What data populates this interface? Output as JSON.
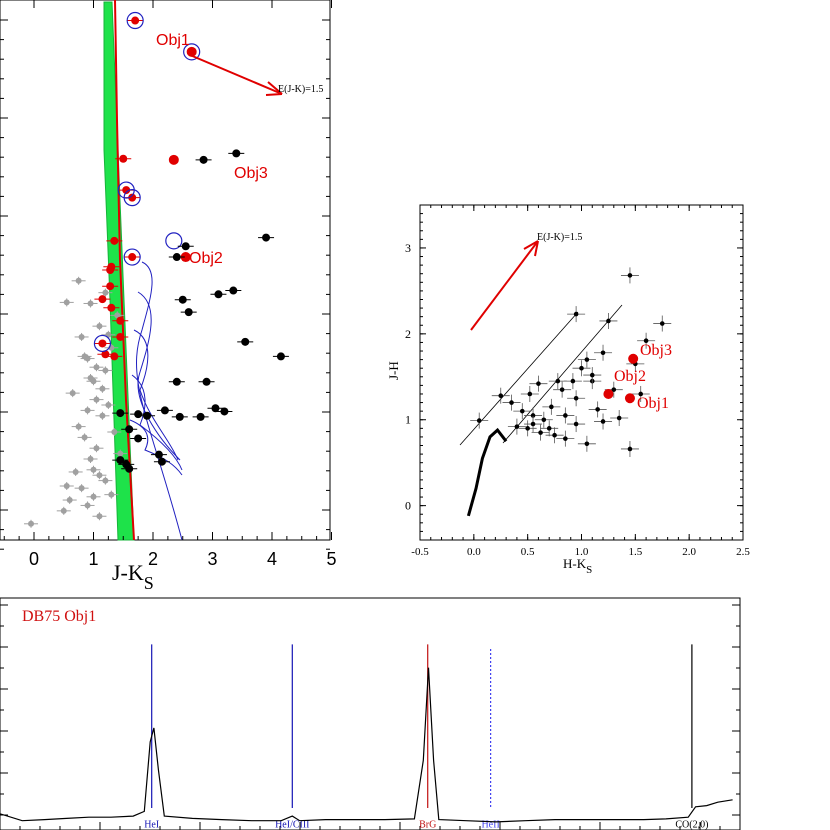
{
  "chart_data": [
    {
      "type": "scatter",
      "panel": "color-magnitude diagram (left)",
      "xlabel_main": "J-K",
      "xlabel_sub": "S",
      "xlim": [
        -0.6,
        5.0
      ],
      "xticks": [
        "0",
        "1",
        "2",
        "3",
        "4",
        "5"
      ],
      "annotations": {
        "obj1": "Obj1",
        "obj2": "Obj2",
        "obj3": "Obj3",
        "reddening": "E(J-K)=1.5"
      },
      "colors": {
        "field": "#a0a0a0",
        "cluster": "#e00000",
        "black": "#000000",
        "circle": "#2020c0",
        "band": "#00e040",
        "track": "#2020c0"
      },
      "series": [
        {
          "values": [
            [
              -0.05,
              0.97
            ],
            [
              0.5,
              0.946
            ],
            [
              0.6,
              0.926
            ],
            [
              0.8,
              0.904
            ],
            [
              0.9,
              0.936
            ],
            [
              1.0,
              0.92
            ],
            [
              1.1,
              0.956
            ],
            [
              1.2,
              0.89
            ],
            [
              0.7,
              0.874
            ],
            [
              0.95,
              0.85
            ],
            [
              1.05,
              0.83
            ],
            [
              0.85,
              0.81
            ],
            [
              0.75,
              0.79
            ],
            [
              1.15,
              0.77
            ],
            [
              1.25,
              0.75
            ],
            [
              0.65,
              0.728
            ],
            [
              1.0,
              0.706
            ],
            [
              1.2,
              0.686
            ],
            [
              0.9,
              0.664
            ],
            [
              1.3,
              0.644
            ],
            [
              0.8,
              0.624
            ],
            [
              1.1,
              0.604
            ],
            [
              1.4,
              0.584
            ],
            [
              0.95,
              0.562
            ],
            [
              1.2,
              0.542
            ],
            [
              0.75,
              0.52
            ],
            [
              0.95,
              0.7
            ],
            [
              1.05,
              0.74
            ],
            [
              0.85,
              0.66
            ],
            [
              1.25,
              0.62
            ],
            [
              0.55,
              0.56
            ],
            [
              1.05,
              0.68
            ],
            [
              1.15,
              0.72
            ],
            [
              0.9,
              0.76
            ],
            [
              1.35,
              0.8
            ],
            [
              1.45,
              0.84
            ],
            [
              1.1,
              0.88
            ],
            [
              0.55,
              0.9
            ],
            [
              1.3,
              0.916
            ],
            [
              1.0,
              0.87
            ]
          ]
        },
        {
          "values": [
            [
              1.7,
              0.038
            ],
            [
              1.5,
              0.294
            ],
            [
              1.55,
              0.352
            ],
            [
              1.65,
              0.366
            ],
            [
              1.35,
              0.446
            ],
            [
              1.65,
              0.476
            ],
            [
              1.3,
              0.494
            ],
            [
              1.15,
              0.554
            ],
            [
              1.3,
              0.57
            ],
            [
              1.45,
              0.594
            ],
            [
              1.15,
              0.636
            ],
            [
              1.2,
              0.656
            ],
            [
              1.35,
              0.66
            ],
            [
              1.45,
              0.624
            ],
            [
              1.28,
              0.53
            ],
            [
              1.28,
              0.5
            ]
          ]
        },
        {
          "values": [
            [
              2.65,
              0.096
            ],
            [
              2.35,
              0.296
            ],
            [
              2.55,
              0.476
            ]
          ]
        },
        {
          "values": [
            [
              2.85,
              0.296
            ],
            [
              3.4,
              0.284
            ],
            [
              3.9,
              0.44
            ],
            [
              2.55,
              0.456
            ],
            [
              2.4,
              0.476
            ],
            [
              2.5,
              0.555
            ],
            [
              3.1,
              0.545
            ],
            [
              3.35,
              0.538
            ],
            [
              2.6,
              0.578
            ],
            [
              3.55,
              0.633
            ],
            [
              4.15,
              0.66
            ],
            [
              2.4,
              0.707
            ],
            [
              2.9,
              0.707
            ],
            [
              1.75,
              0.767
            ],
            [
              2.2,
              0.76
            ],
            [
              2.45,
              0.772
            ],
            [
              2.8,
              0.772
            ],
            [
              3.2,
              0.762
            ],
            [
              1.45,
              0.765
            ],
            [
              1.9,
              0.77
            ],
            [
              3.05,
              0.756
            ],
            [
              1.6,
              0.795
            ],
            [
              1.75,
              0.812
            ],
            [
              2.1,
              0.842
            ],
            [
              1.45,
              0.852
            ],
            [
              2.15,
              0.855
            ],
            [
              1.55,
              0.86
            ],
            [
              1.6,
              0.868
            ]
          ]
        }
      ]
    },
    {
      "type": "scatter",
      "panel": "color-color diagram (right)",
      "xlabel_main": "H-K",
      "xlabel_sub": "S",
      "ylabel": "J-H",
      "xlim": [
        -0.5,
        2.5
      ],
      "ylim": [
        -0.4,
        3.5
      ],
      "xticks": [
        "-0.5",
        "0.0",
        "0.5",
        "1.0",
        "1.5",
        "2.0",
        "2.5"
      ],
      "yticks": [
        "0",
        "1",
        "2",
        "3"
      ],
      "annotations": {
        "obj1": "Obj1",
        "obj2": "Obj2",
        "obj3": "Obj3",
        "reddening": "E(J-K)=1.5"
      },
      "series": [
        {
          "values": [
            [
              1.45,
              2.68
            ],
            [
              0.95,
              2.23
            ],
            [
              1.25,
              2.15
            ],
            [
              1.75,
              2.12
            ],
            [
              1.6,
              1.92
            ],
            [
              1.5,
              1.65
            ],
            [
              1.2,
              1.78
            ],
            [
              1.05,
              1.7
            ],
            [
              0.6,
              1.42
            ],
            [
              0.78,
              1.45
            ],
            [
              0.92,
              1.45
            ],
            [
              1.1,
              1.45
            ],
            [
              1.0,
              1.6
            ],
            [
              0.82,
              1.35
            ],
            [
              0.52,
              1.3
            ],
            [
              0.25,
              1.28
            ],
            [
              0.35,
              1.2
            ],
            [
              0.45,
              1.1
            ],
            [
              0.55,
              1.05
            ],
            [
              0.65,
              1.0
            ],
            [
              0.72,
              1.15
            ],
            [
              0.85,
              1.05
            ],
            [
              0.95,
              0.95
            ],
            [
              1.15,
              1.12
            ],
            [
              1.2,
              0.98
            ],
            [
              1.35,
              1.02
            ],
            [
              0.4,
              0.92
            ],
            [
              0.5,
              0.9
            ],
            [
              0.62,
              0.85
            ],
            [
              0.75,
              0.82
            ],
            [
              0.85,
              0.78
            ],
            [
              1.05,
              0.72
            ],
            [
              1.45,
              0.66
            ],
            [
              0.05,
              0.99
            ],
            [
              0.55,
              0.95
            ],
            [
              0.7,
              0.9
            ],
            [
              1.3,
              1.35
            ],
            [
              1.1,
              1.52
            ],
            [
              1.55,
              1.3
            ],
            [
              0.95,
              1.25
            ]
          ]
        },
        {
          "values": [
            [
              1.45,
              1.25
            ],
            [
              1.25,
              1.3
            ],
            [
              1.48,
              1.71
            ]
          ]
        }
      ],
      "intrinsic_locus": [
        [
          -0.05,
          -0.12
        ],
        [
          0.02,
          0.2
        ],
        [
          0.08,
          0.55
        ],
        [
          0.15,
          0.8
        ],
        [
          0.22,
          0.88
        ],
        [
          0.3,
          0.75
        ]
      ]
    },
    {
      "type": "line",
      "panel": "near-infrared spectrum (bottom)",
      "title": "DB75 Obj1",
      "line_ids": [
        "HeI",
        "HeI/CIII",
        "BrG",
        "HeII",
        "CO(2,0)"
      ],
      "line_positions": [
        0.205,
        0.395,
        0.578,
        0.663,
        0.935
      ],
      "line_colors": [
        "#1515b4",
        "#1515b4",
        "#c01010",
        "#4040f0",
        "#000000"
      ],
      "spectrum": [
        [
          0.0,
          0.93
        ],
        [
          0.03,
          0.96
        ],
        [
          0.06,
          0.955
        ],
        [
          0.09,
          0.95
        ],
        [
          0.12,
          0.945
        ],
        [
          0.15,
          0.945
        ],
        [
          0.18,
          0.94
        ],
        [
          0.195,
          0.92
        ],
        [
          0.203,
          0.62
        ],
        [
          0.208,
          0.56
        ],
        [
          0.214,
          0.74
        ],
        [
          0.222,
          0.94
        ],
        [
          0.26,
          0.95
        ],
        [
          0.3,
          0.955
        ],
        [
          0.34,
          0.96
        ],
        [
          0.38,
          0.96
        ],
        [
          0.395,
          0.94
        ],
        [
          0.405,
          0.96
        ],
        [
          0.44,
          0.955
        ],
        [
          0.48,
          0.955
        ],
        [
          0.52,
          0.955
        ],
        [
          0.56,
          0.952
        ],
        [
          0.572,
          0.7
        ],
        [
          0.579,
          0.3
        ],
        [
          0.586,
          0.7
        ],
        [
          0.593,
          0.955
        ],
        [
          0.63,
          0.96
        ],
        [
          0.67,
          0.965
        ],
        [
          0.71,
          0.96
        ],
        [
          0.75,
          0.955
        ],
        [
          0.79,
          0.955
        ],
        [
          0.83,
          0.955
        ],
        [
          0.87,
          0.955
        ],
        [
          0.9,
          0.952
        ],
        [
          0.93,
          0.945
        ],
        [
          0.94,
          0.9
        ],
        [
          0.955,
          0.895
        ],
        [
          0.97,
          0.88
        ],
        [
          0.99,
          0.87
        ]
      ]
    }
  ]
}
